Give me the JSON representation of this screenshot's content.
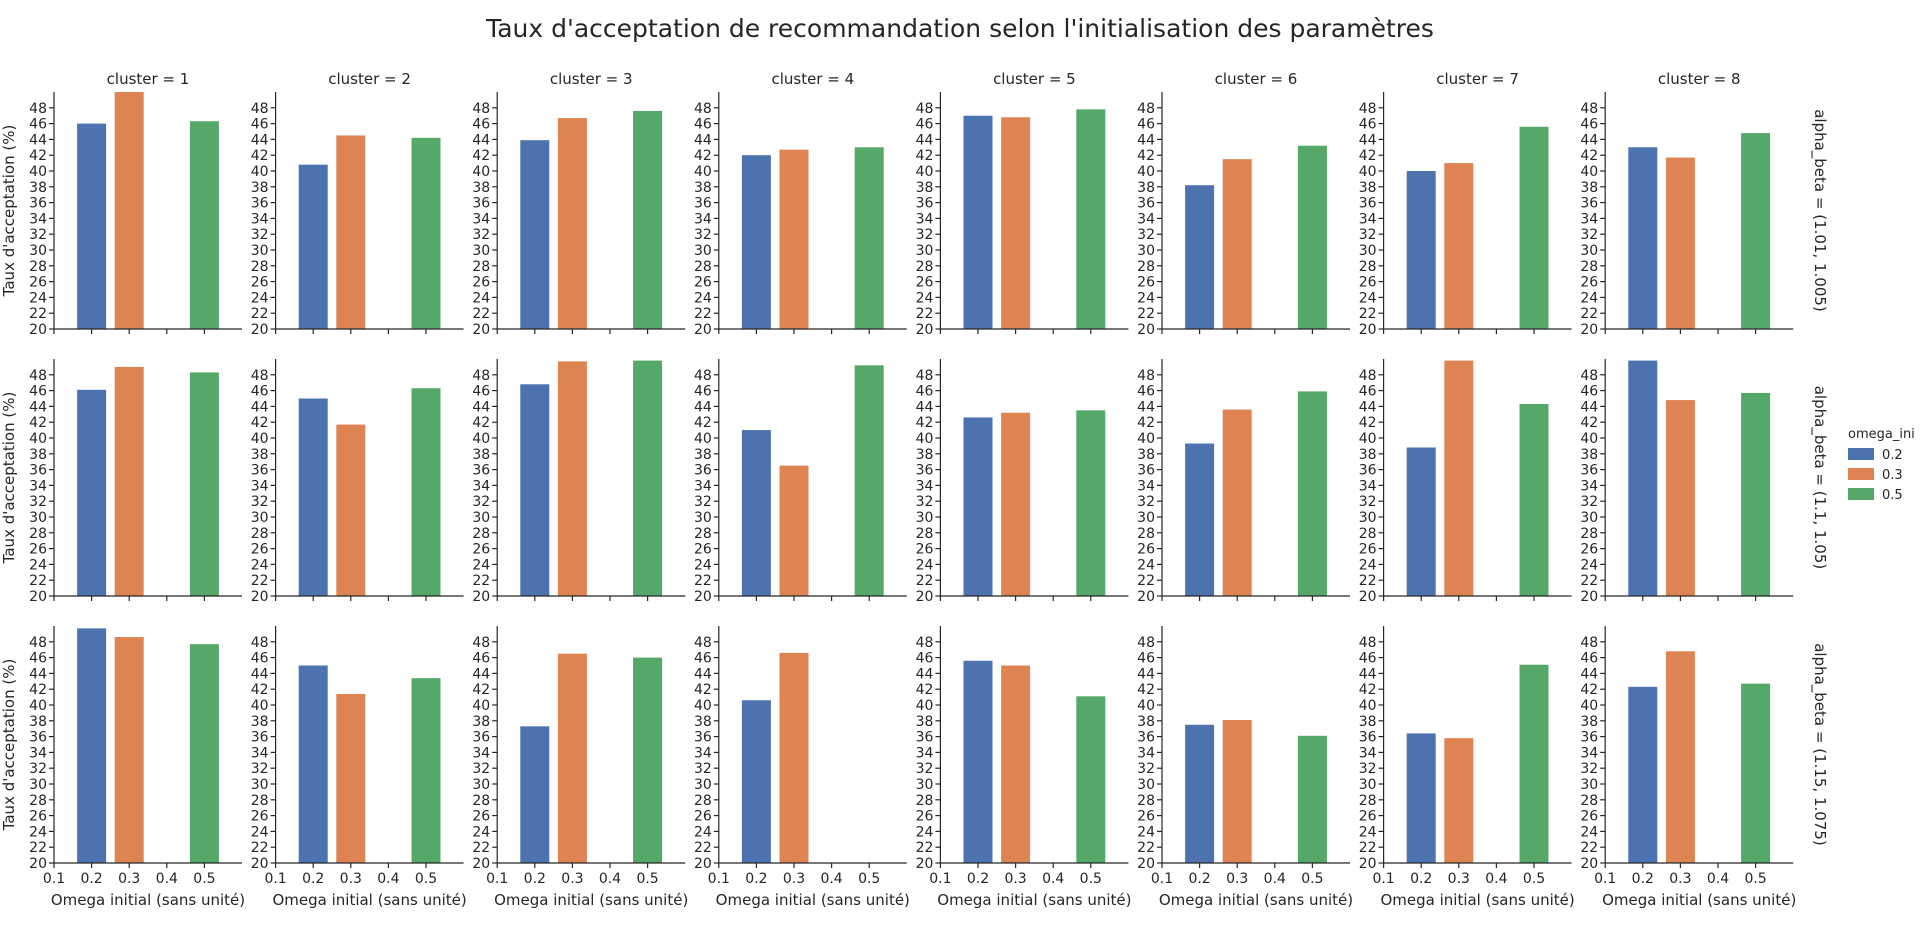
{
  "chart_data": {
    "type": "bar",
    "title": "Taux d'acceptation de recommandation selon l'initialisation des paramètres",
    "xlabel": "Omega initial (sans unité)",
    "ylabel": "Taux d'acceptation (%)",
    "x_ticks": [
      "0.1",
      "0.2",
      "0.3",
      "0.4",
      "0.5"
    ],
    "xlim": [
      0.1,
      0.6
    ],
    "ylim": [
      20,
      50
    ],
    "y_ticks": [
      20,
      22,
      24,
      26,
      28,
      30,
      32,
      34,
      36,
      38,
      40,
      42,
      44,
      46,
      48
    ],
    "bar_positions": [
      0.2,
      0.3,
      0.5
    ],
    "column_titles": [
      "cluster = 1",
      "cluster = 2",
      "cluster = 3",
      "cluster = 4",
      "cluster = 5",
      "cluster = 6",
      "cluster = 7",
      "cluster = 8"
    ],
    "row_titles": [
      "alpha_beta = (1.01, 1.005)",
      "alpha_beta = (1.1, 1.05)",
      "alpha_beta = (1.15, 1.075)"
    ],
    "legend": {
      "title": "omega_ini",
      "placement": "right",
      "entries": [
        {
          "label": "0.2",
          "color": "#4c72b0"
        },
        {
          "label": "0.3",
          "color": "#dd8452"
        },
        {
          "label": "0.5",
          "color": "#55a868"
        }
      ]
    },
    "series": [
      {
        "name": "0.2",
        "color": "#4c72b0"
      },
      {
        "name": "0.3",
        "color": "#dd8452"
      },
      {
        "name": "0.5",
        "color": "#55a868"
      }
    ],
    "values": [
      [
        [
          46.0,
          50.0,
          46.3
        ],
        [
          40.8,
          44.5,
          44.2
        ],
        [
          43.9,
          46.7,
          47.6
        ],
        [
          42.0,
          42.7,
          43.0
        ],
        [
          47.0,
          46.8,
          47.8
        ],
        [
          38.2,
          41.5,
          43.2
        ],
        [
          40.0,
          41.0,
          45.6
        ],
        [
          43.0,
          41.7,
          44.8
        ]
      ],
      [
        [
          46.1,
          49.0,
          48.3
        ],
        [
          45.0,
          41.7,
          46.3
        ],
        [
          46.8,
          49.7,
          49.8
        ],
        [
          41.0,
          36.5,
          49.2
        ],
        [
          42.6,
          43.2,
          43.5
        ],
        [
          39.3,
          43.6,
          45.9
        ],
        [
          38.8,
          49.8,
          44.3
        ],
        [
          49.8,
          44.8,
          45.7
        ]
      ],
      [
        [
          49.7,
          48.6,
          47.7
        ],
        [
          45.0,
          41.4,
          43.4
        ],
        [
          37.3,
          46.5,
          46.0
        ],
        [
          40.6,
          46.6,
          null
        ],
        [
          45.6,
          45.0,
          41.1
        ],
        [
          37.5,
          38.1,
          36.1
        ],
        [
          36.4,
          35.8,
          45.1
        ],
        [
          42.3,
          46.8,
          42.7
        ]
      ]
    ]
  }
}
